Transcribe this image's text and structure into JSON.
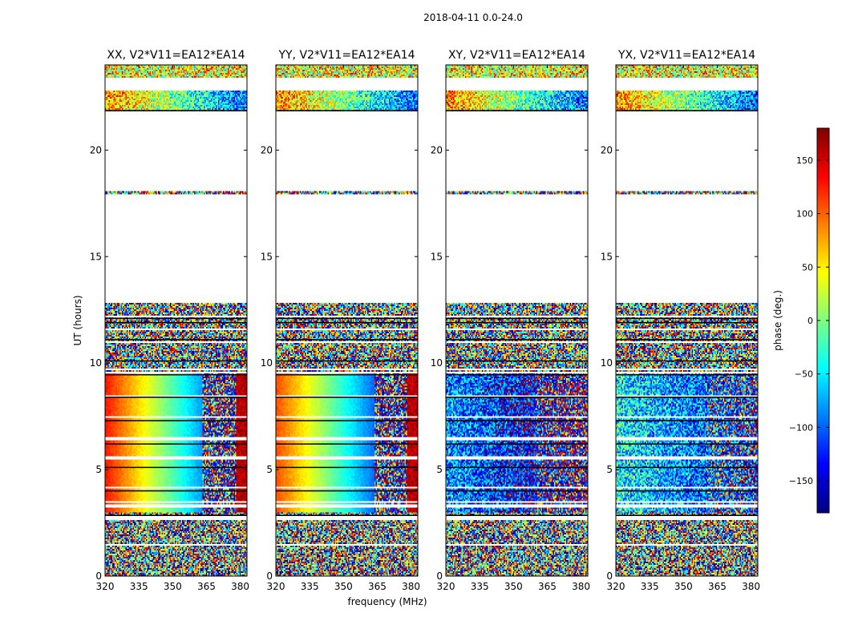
{
  "figure": {
    "suptitle": "2018-04-11 0.0-24.0"
  },
  "chart_data": {
    "type": "heatmap",
    "xlabel": "frequency (MHz)",
    "ylabel": "UT (hours)",
    "xlim": [
      320,
      383
    ],
    "ylim": [
      0,
      24
    ],
    "xticks": [
      320,
      335,
      350,
      365,
      380
    ],
    "yticks": [
      0,
      5,
      10,
      15,
      20
    ],
    "panels": [
      {
        "title": "XX, V2*V11=EA12*EA14",
        "pol": "XX"
      },
      {
        "title": "YY, V2*V11=EA12*EA14",
        "pol": "YY"
      },
      {
        "title": "XY, V2*V11=EA12*EA14",
        "pol": "XY"
      },
      {
        "title": "YX, V2*V11=EA12*EA14",
        "pol": "YX"
      }
    ],
    "colorbar": {
      "label": "phase (deg.)",
      "range": [
        -180,
        180
      ],
      "ticks": [
        150,
        100,
        50,
        0,
        -50,
        -100,
        -150
      ],
      "tick_labels": [
        "150",
        "100",
        "50",
        "0",
        "−50",
        "−100",
        "−150"
      ],
      "colormap": "jet"
    },
    "data_gaps_hours": [
      [
        12.8,
        17.9
      ],
      [
        18.1,
        21.8
      ],
      [
        22.8,
        23.4
      ]
    ],
    "description": "Phase (deg.) vs frequency and UT; XX/YY show smooth phase gradient from ~3 to ~9.5 UT, noisy elsewhere"
  }
}
